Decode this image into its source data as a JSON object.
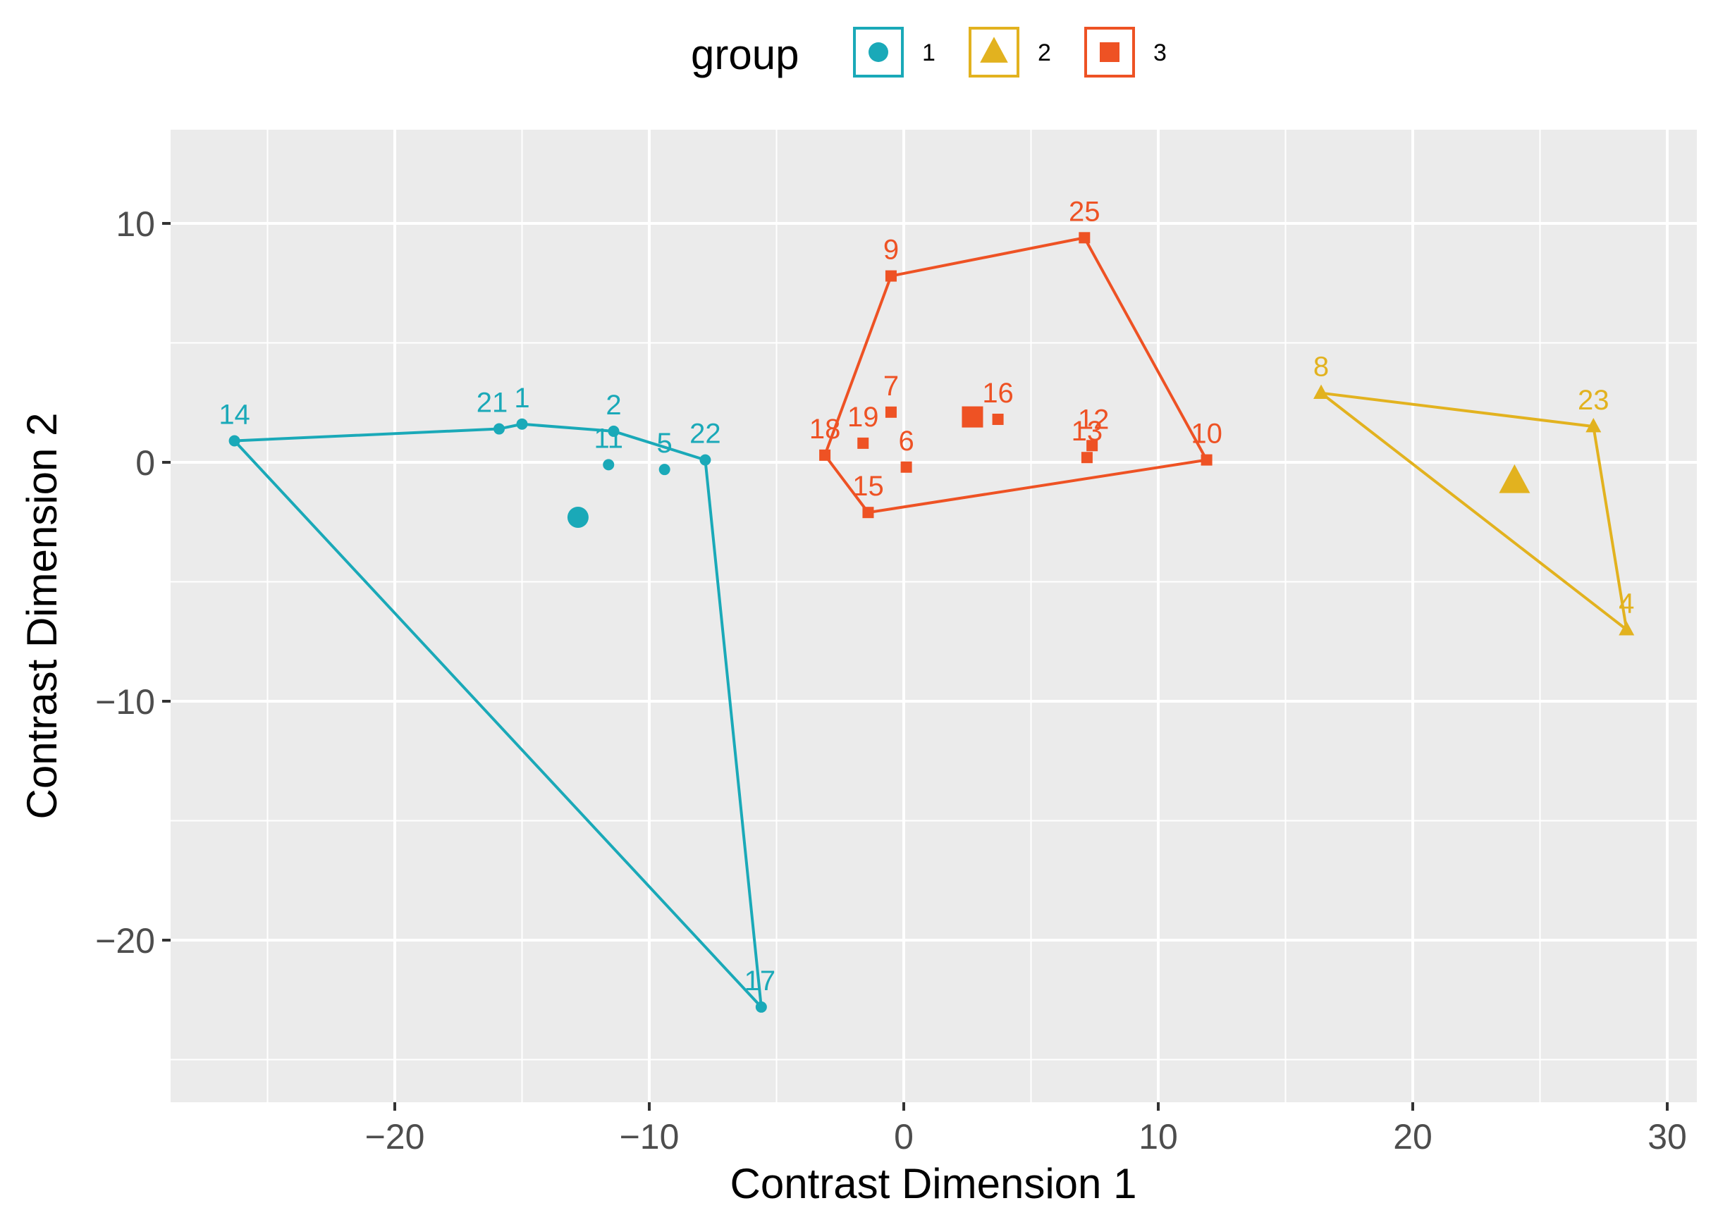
{
  "chart_data": {
    "type": "scatter",
    "title": "",
    "xlabel": "Contrast Dimension 1",
    "ylabel": "Contrast Dimension 2",
    "xlim": [
      -28.5,
      31.5
    ],
    "ylim": [
      -26.5,
      14
    ],
    "x_ticks": [
      -20,
      -10,
      0,
      10,
      20,
      30
    ],
    "x_tick_labels": [
      "−20",
      "−10",
      "0",
      "10",
      "20",
      "30"
    ],
    "y_ticks": [
      -20,
      -10,
      0,
      10
    ],
    "y_tick_labels": [
      "−20",
      "−10",
      "0",
      "10"
    ],
    "grid": true,
    "legend": {
      "title": "group",
      "position": "top",
      "items": [
        {
          "label": "1",
          "color": "#1AA9B8",
          "shape": "circle"
        },
        {
          "label": "2",
          "color": "#E2B21F",
          "shape": "triangle"
        },
        {
          "label": "3",
          "color": "#EE5224",
          "shape": "square"
        }
      ]
    },
    "series": [
      {
        "name": "1",
        "color": "#1AA9B8",
        "shape": "circle",
        "centroid": [
          -12.8,
          -2.3
        ],
        "hull": [
          "14",
          "21",
          "1",
          "2",
          "22",
          "17"
        ],
        "points": [
          {
            "label": "14",
            "x": -26.3,
            "y": 0.9
          },
          {
            "label": "21",
            "x": -15.9,
            "y": 1.4
          },
          {
            "label": "1",
            "x": -15.0,
            "y": 1.6
          },
          {
            "label": "2",
            "x": -11.4,
            "y": 1.3
          },
          {
            "label": "11",
            "x": -11.6,
            "y": -0.1
          },
          {
            "label": "5",
            "x": -9.4,
            "y": -0.3
          },
          {
            "label": "22",
            "x": -7.8,
            "y": 0.1
          },
          {
            "label": "17",
            "x": -5.6,
            "y": -22.8
          }
        ]
      },
      {
        "name": "2",
        "color": "#E2B21F",
        "shape": "triangle",
        "centroid": [
          24.0,
          -0.8
        ],
        "hull": [
          "8",
          "23",
          "4"
        ],
        "points": [
          {
            "label": "8",
            "x": 16.4,
            "y": 2.9
          },
          {
            "label": "23",
            "x": 27.1,
            "y": 1.5
          },
          {
            "label": "4",
            "x": 28.4,
            "y": -7.0
          }
        ]
      },
      {
        "name": "3",
        "color": "#EE5224",
        "shape": "square",
        "centroid": [
          2.7,
          1.9
        ],
        "hull": [
          "18",
          "9",
          "25",
          "10",
          "15"
        ],
        "points": [
          {
            "label": "9",
            "x": -0.5,
            "y": 7.8
          },
          {
            "label": "25",
            "x": 7.1,
            "y": 9.4
          },
          {
            "label": "7",
            "x": -0.5,
            "y": 2.1
          },
          {
            "label": "16",
            "x": 3.7,
            "y": 1.8
          },
          {
            "label": "12",
            "x": 7.4,
            "y": 0.7
          },
          {
            "label": "13",
            "x": 7.2,
            "y": 0.2
          },
          {
            "label": "18",
            "x": -3.1,
            "y": 0.3
          },
          {
            "label": "19",
            "x": -1.6,
            "y": 0.8
          },
          {
            "label": "6",
            "x": 0.1,
            "y": -0.2
          },
          {
            "label": "10",
            "x": 11.9,
            "y": 0.1
          },
          {
            "label": "15",
            "x": -1.4,
            "y": -2.1
          }
        ]
      }
    ]
  }
}
